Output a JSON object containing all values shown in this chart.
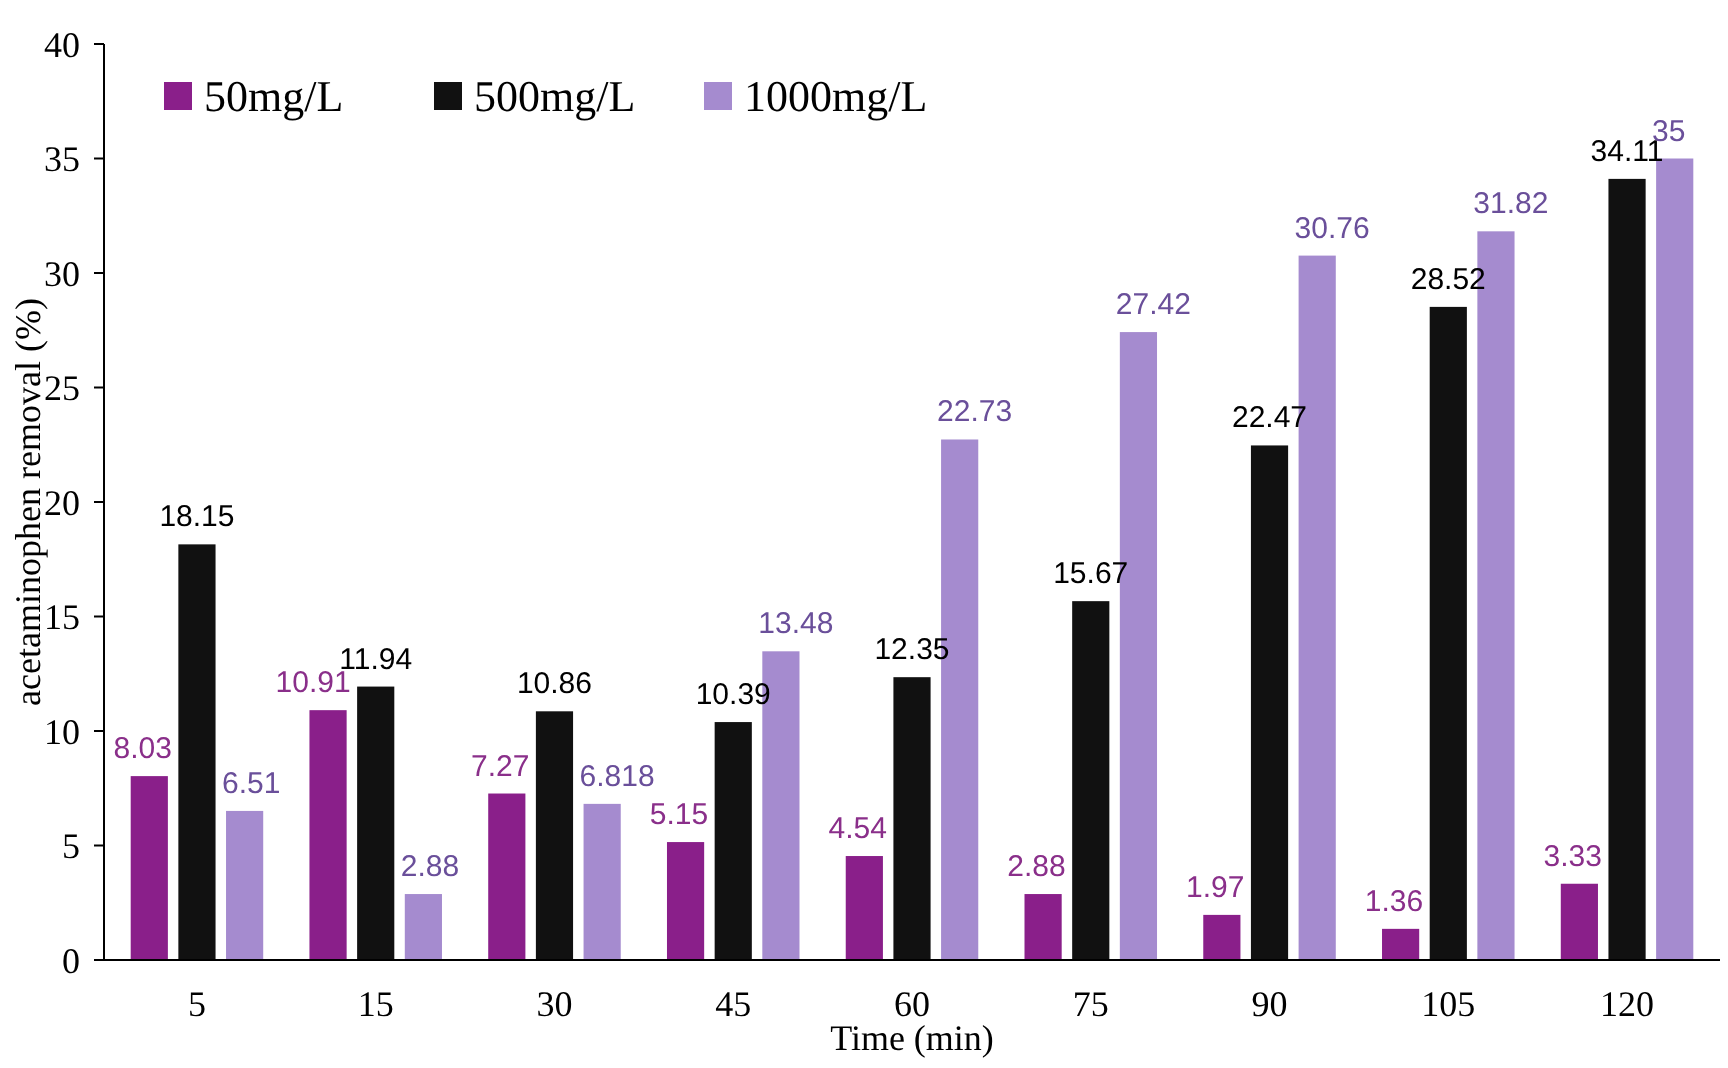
{
  "chart_data": {
    "type": "bar",
    "xlabel": "Time (min)",
    "ylabel": "acetaminophen removal (%)",
    "categories": [
      "5",
      "15",
      "30",
      "45",
      "60",
      "75",
      "90",
      "105",
      "120"
    ],
    "series": [
      {
        "name": "50mg/L",
        "color": "#8a1f8a",
        "values": [
          8.03,
          10.91,
          7.27,
          5.15,
          4.54,
          2.88,
          1.97,
          1.36,
          3.33
        ]
      },
      {
        "name": "500mg/L",
        "color": "#111111",
        "values": [
          18.15,
          11.94,
          10.86,
          10.39,
          12.35,
          15.67,
          22.47,
          28.52,
          34.11
        ]
      },
      {
        "name": "1000mg/L",
        "color": "#a58bcf",
        "values": [
          6.51,
          2.88,
          6.818,
          13.48,
          22.73,
          27.42,
          30.76,
          31.82,
          35
        ]
      }
    ],
    "ylim": [
      0,
      40
    ],
    "yticks": [
      0,
      5,
      10,
      15,
      20,
      25,
      30,
      35,
      40
    ],
    "grid": false,
    "legend": "top left",
    "data_labels": true
  }
}
